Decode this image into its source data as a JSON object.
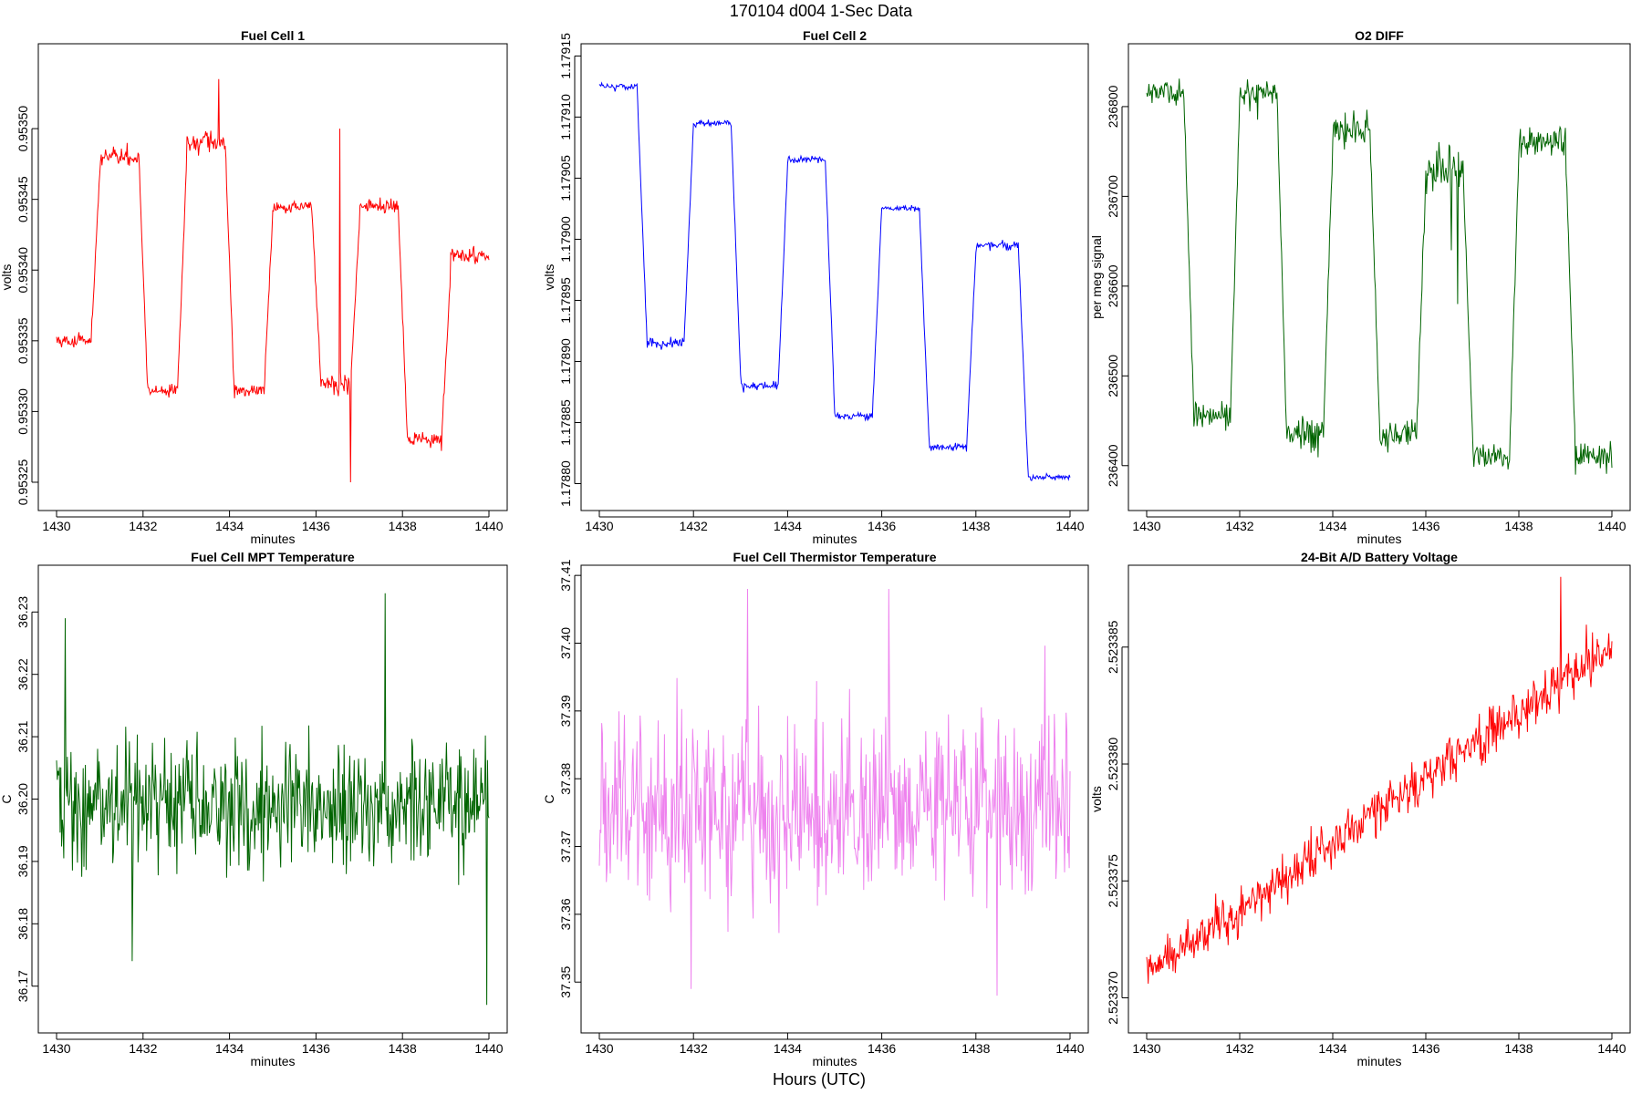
{
  "page": {
    "title": "170104   d004   1-Sec Data",
    "xlabel": "Hours (UTC)"
  },
  "chart_data": [
    {
      "id": "fuel-cell-1",
      "type": "line",
      "title": "Fuel Cell 1",
      "xlabel": "minutes",
      "ylabel": "volts",
      "color": "#ff0000",
      "xlim": [
        1430,
        1440
      ],
      "ylim": [
        0.95323,
        0.95356
      ],
      "xticks": [
        1430,
        1432,
        1434,
        1436,
        1438,
        1440
      ],
      "xtick_labels": [
        "1430",
        "1432",
        "1434",
        "1436",
        "1438",
        "1440"
      ],
      "yticks": [
        0.95325,
        0.9533,
        0.95335,
        0.9534,
        0.95345,
        0.9535
      ],
      "ytick_labels": [
        "0.95325",
        "0.95330",
        "0.95335",
        "0.95340",
        "0.95345",
        "0.95350"
      ],
      "series": [
        {
          "name": "Fuel Cell 1",
          "segments": [
            {
              "x0": 1430.0,
              "x1": 1430.8,
              "v": 0.95335,
              "noise": 3e-06
            },
            {
              "x0": 1430.8,
              "x1": 1431.0,
              "ramp": [
                0.95335,
                0.95347
              ],
              "noise": 3e-06
            },
            {
              "x0": 1431.0,
              "x1": 1431.9,
              "v": 0.95348,
              "noise": 5e-06
            },
            {
              "x0": 1431.9,
              "x1": 1432.1,
              "ramp": [
                0.95348,
                0.95332
              ],
              "noise": 3e-06
            },
            {
              "x0": 1432.1,
              "x1": 1432.8,
              "v": 0.953315,
              "noise": 4e-06
            },
            {
              "x0": 1432.8,
              "x1": 1433.0,
              "ramp": [
                0.953315,
                0.95347
              ],
              "noise": 3e-06
            },
            {
              "x0": 1433.0,
              "x1": 1433.9,
              "v": 0.95349,
              "noise": 6e-06
            },
            {
              "x0": 1433.9,
              "x1": 1434.1,
              "ramp": [
                0.95349,
                0.95332
              ],
              "noise": 3e-06
            },
            {
              "x0": 1434.1,
              "x1": 1434.8,
              "v": 0.953315,
              "noise": 4e-06
            },
            {
              "x0": 1434.8,
              "x1": 1435.0,
              "ramp": [
                0.953315,
                0.95344
              ],
              "noise": 3e-06
            },
            {
              "x0": 1435.0,
              "x1": 1435.9,
              "v": 0.953445,
              "noise": 3e-06
            },
            {
              "x0": 1435.9,
              "x1": 1436.1,
              "ramp": [
                0.953445,
                0.95333
              ],
              "noise": 3e-06
            },
            {
              "x0": 1436.1,
              "x1": 1436.8,
              "v": 0.95332,
              "noise": 6e-06
            },
            {
              "x0": 1436.8,
              "x1": 1437.0,
              "ramp": [
                0.95332,
                0.95343
              ],
              "noise": 3e-06
            },
            {
              "x0": 1437.0,
              "x1": 1437.9,
              "v": 0.953445,
              "noise": 4e-06
            },
            {
              "x0": 1437.9,
              "x1": 1438.1,
              "ramp": [
                0.953445,
                0.95329
              ],
              "noise": 3e-06
            },
            {
              "x0": 1438.1,
              "x1": 1438.9,
              "v": 0.95328,
              "noise": 4e-06
            },
            {
              "x0": 1438.9,
              "x1": 1439.1,
              "ramp": [
                0.95328,
                0.95339
              ],
              "noise": 3e-06
            },
            {
              "x0": 1439.1,
              "x1": 1440.0,
              "v": 0.95341,
              "noise": 4e-06
            }
          ],
          "spikes": [
            {
              "x": 1436.55,
              "v": 0.9535
            },
            {
              "x": 1436.8,
              "v": 0.95325
            },
            {
              "x": 1433.75,
              "v": 0.953535
            }
          ]
        }
      ]
    },
    {
      "id": "fuel-cell-2",
      "type": "line",
      "title": "Fuel Cell 2",
      "xlabel": "minutes",
      "ylabel": "volts",
      "color": "#0000ff",
      "xlim": [
        1430,
        1440
      ],
      "ylim": [
        1.178778,
        1.17916
      ],
      "xticks": [
        1430,
        1432,
        1434,
        1436,
        1438,
        1440
      ],
      "xtick_labels": [
        "1430",
        "1432",
        "1434",
        "1436",
        "1438",
        "1440"
      ],
      "yticks": [
        1.1788,
        1.17885,
        1.1789,
        1.17895,
        1.179,
        1.17905,
        1.1791,
        1.17915
      ],
      "ytick_labels": [
        "1.17880",
        "1.17885",
        "1.17890",
        "1.17895",
        "1.17900",
        "1.17905",
        "1.17910",
        "1.17915"
      ],
      "series": [
        {
          "name": "Fuel Cell 2",
          "segments": [
            {
              "x0": 1430.0,
              "x1": 1430.8,
              "v": 1.179125,
              "noise": 2e-06
            },
            {
              "x0": 1430.8,
              "x1": 1431.0,
              "ramp": [
                1.179125,
                1.17893
              ],
              "noise": 2e-06
            },
            {
              "x0": 1431.0,
              "x1": 1431.8,
              "v": 1.178915,
              "noise": 3e-06
            },
            {
              "x0": 1431.8,
              "x1": 1432.0,
              "ramp": [
                1.178915,
                1.179095
              ],
              "noise": 2e-06
            },
            {
              "x0": 1432.0,
              "x1": 1432.8,
              "v": 1.179095,
              "noise": 2e-06
            },
            {
              "x0": 1432.8,
              "x1": 1433.0,
              "ramp": [
                1.179095,
                1.17889
              ],
              "noise": 2e-06
            },
            {
              "x0": 1433.0,
              "x1": 1433.8,
              "v": 1.17888,
              "noise": 3e-06
            },
            {
              "x0": 1433.8,
              "x1": 1434.0,
              "ramp": [
                1.17888,
                1.17906
              ],
              "noise": 2e-06
            },
            {
              "x0": 1434.0,
              "x1": 1434.8,
              "v": 1.179065,
              "noise": 2e-06
            },
            {
              "x0": 1434.8,
              "x1": 1435.0,
              "ramp": [
                1.179065,
                1.17886
              ],
              "noise": 2e-06
            },
            {
              "x0": 1435.0,
              "x1": 1435.8,
              "v": 1.178855,
              "noise": 2.5e-06
            },
            {
              "x0": 1435.8,
              "x1": 1436.0,
              "ramp": [
                1.178855,
                1.179025
              ],
              "noise": 2e-06
            },
            {
              "x0": 1436.0,
              "x1": 1436.8,
              "v": 1.179025,
              "noise": 2e-06
            },
            {
              "x0": 1436.8,
              "x1": 1437.0,
              "ramp": [
                1.179025,
                1.17884
              ],
              "noise": 2e-06
            },
            {
              "x0": 1437.0,
              "x1": 1437.8,
              "v": 1.17883,
              "noise": 2.5e-06
            },
            {
              "x0": 1437.8,
              "x1": 1438.0,
              "ramp": [
                1.17883,
                1.17899
              ],
              "noise": 2e-06
            },
            {
              "x0": 1438.0,
              "x1": 1438.9,
              "v": 1.178995,
              "noise": 2.5e-06
            },
            {
              "x0": 1438.9,
              "x1": 1439.1,
              "ramp": [
                1.178995,
                1.178815
              ],
              "noise": 2e-06
            },
            {
              "x0": 1439.1,
              "x1": 1440.0,
              "v": 1.178805,
              "noise": 2e-06
            }
          ],
          "spikes": []
        }
      ]
    },
    {
      "id": "o2-diff",
      "type": "line",
      "title": "O2 DIFF",
      "xlabel": "minutes",
      "ylabel": "per meg signal",
      "color": "#006400",
      "xlim": [
        1430,
        1440
      ],
      "ylim": [
        236350,
        236870
      ],
      "xticks": [
        1430,
        1432,
        1434,
        1436,
        1438,
        1440
      ],
      "xtick_labels": [
        "1430",
        "1432",
        "1434",
        "1436",
        "1438",
        "1440"
      ],
      "yticks": [
        236400,
        236500,
        236600,
        236700,
        236800
      ],
      "ytick_labels": [
        "236400",
        "236500",
        "236600",
        "236700",
        "236800"
      ],
      "series": [
        {
          "name": "O2 DIFF",
          "segments": [
            {
              "x0": 1430.0,
              "x1": 1430.8,
              "v": 236815,
              "noise": 10
            },
            {
              "x0": 1430.8,
              "x1": 1431.0,
              "ramp": [
                236815,
                236480
              ],
              "noise": 8
            },
            {
              "x0": 1431.0,
              "x1": 1431.8,
              "v": 236455,
              "noise": 12
            },
            {
              "x0": 1431.8,
              "x1": 1432.0,
              "ramp": [
                236455,
                236810
              ],
              "noise": 8
            },
            {
              "x0": 1432.0,
              "x1": 1432.8,
              "v": 236815,
              "noise": 14
            },
            {
              "x0": 1432.8,
              "x1": 1433.0,
              "ramp": [
                236815,
                236450
              ],
              "noise": 8
            },
            {
              "x0": 1433.0,
              "x1": 1433.8,
              "v": 236435,
              "noise": 15
            },
            {
              "x0": 1433.8,
              "x1": 1434.0,
              "ramp": [
                236435,
                236760
              ],
              "noise": 8
            },
            {
              "x0": 1434.0,
              "x1": 1434.8,
              "v": 236775,
              "noise": 14
            },
            {
              "x0": 1434.8,
              "x1": 1435.0,
              "ramp": [
                236775,
                236450
              ],
              "noise": 8
            },
            {
              "x0": 1435.0,
              "x1": 1435.8,
              "v": 236435,
              "noise": 12
            },
            {
              "x0": 1435.8,
              "x1": 1436.0,
              "ramp": [
                236435,
                236720
              ],
              "noise": 8
            },
            {
              "x0": 1436.0,
              "x1": 1436.8,
              "v": 236730,
              "noise": 20
            },
            {
              "x0": 1436.8,
              "x1": 1437.0,
              "ramp": [
                236730,
                236440
              ],
              "noise": 8
            },
            {
              "x0": 1437.0,
              "x1": 1437.8,
              "v": 236410,
              "noise": 12
            },
            {
              "x0": 1437.8,
              "x1": 1438.0,
              "ramp": [
                236410,
                236750
              ],
              "noise": 8
            },
            {
              "x0": 1438.0,
              "x1": 1439.0,
              "v": 236760,
              "noise": 14
            },
            {
              "x0": 1439.0,
              "x1": 1439.2,
              "ramp": [
                236760,
                236440
              ],
              "noise": 8
            },
            {
              "x0": 1439.2,
              "x1": 1440.0,
              "v": 236410,
              "noise": 12
            }
          ],
          "spikes": [
            {
              "x": 1436.55,
              "v": 236640
            },
            {
              "x": 1436.68,
              "v": 236580
            }
          ]
        }
      ]
    },
    {
      "id": "fuel-cell-mpt-temperature",
      "type": "line",
      "title": "Fuel Cell MPT Temperature",
      "xlabel": "minutes",
      "ylabel": "C",
      "color": "#006400",
      "xlim": [
        1430,
        1440
      ],
      "ylim": [
        36.1625,
        36.2375
      ],
      "xticks": [
        1430,
        1432,
        1434,
        1436,
        1438,
        1440
      ],
      "xtick_labels": [
        "1430",
        "1432",
        "1434",
        "1436",
        "1438",
        "1440"
      ],
      "yticks": [
        36.17,
        36.18,
        36.19,
        36.2,
        36.21,
        36.22,
        36.23
      ],
      "ytick_labels": [
        "36.17",
        "36.18",
        "36.19",
        "36.20",
        "36.21",
        "36.22",
        "36.23"
      ],
      "series": [
        {
          "name": "Fuel Cell MPT Temperature",
          "segments": [
            {
              "x0": 1430.0,
              "x1": 1440.0,
              "v": 36.199,
              "noise": 0.0075
            }
          ],
          "spikes": [
            {
              "x": 1430.2,
              "v": 36.229
            },
            {
              "x": 1437.6,
              "v": 36.233
            },
            {
              "x": 1439.95,
              "v": 36.167
            },
            {
              "x": 1431.75,
              "v": 36.174
            }
          ]
        }
      ]
    },
    {
      "id": "fuel-cell-thermistor-temperature",
      "type": "line",
      "title": "Fuel Cell Thermistor Temperature",
      "xlabel": "minutes",
      "ylabel": "C",
      "color": "#ee82ee",
      "xlim": [
        1430,
        1440
      ],
      "ylim": [
        37.3425,
        37.4115
      ],
      "xticks": [
        1430,
        1432,
        1434,
        1436,
        1438,
        1440
      ],
      "xtick_labels": [
        "1430",
        "1432",
        "1434",
        "1436",
        "1438",
        "1440"
      ],
      "yticks": [
        37.35,
        37.36,
        37.37,
        37.38,
        37.39,
        37.4,
        37.41
      ],
      "ytick_labels": [
        "37.35",
        "37.36",
        "37.37",
        "37.38",
        "37.39",
        "37.40",
        "37.41"
      ],
      "series": [
        {
          "name": "Fuel Cell Thermistor Temperature",
          "segments": [
            {
              "x0": 1430.0,
              "x1": 1440.0,
              "v": 37.376,
              "noise": 0.0105
            }
          ],
          "spikes": [
            {
              "x": 1431.95,
              "v": 37.349
            },
            {
              "x": 1433.15,
              "v": 37.408
            },
            {
              "x": 1436.15,
              "v": 37.408
            },
            {
              "x": 1438.45,
              "v": 37.348
            }
          ]
        }
      ]
    },
    {
      "id": "24-bit-ad-battery-voltage",
      "type": "line",
      "title": "24-Bit A/D Battery Voltage",
      "xlabel": "minutes",
      "ylabel": "volts",
      "color": "#ff0000",
      "xlim": [
        1430,
        1440
      ],
      "ylim": [
        2.5233685,
        2.5233885
      ],
      "xticks": [
        1430,
        1432,
        1434,
        1436,
        1438,
        1440
      ],
      "xtick_labels": [
        "1430",
        "1432",
        "1434",
        "1436",
        "1438",
        "1440"
      ],
      "yticks": [
        2.52337,
        2.523375,
        2.52338,
        2.523385
      ],
      "ytick_labels": [
        "2.523370",
        "2.523375",
        "2.523380",
        "2.523385"
      ],
      "series": [
        {
          "name": "24-Bit A/D Battery Voltage",
          "segments": [
            {
              "x0": 1430.0,
              "x1": 1440.0,
              "ramp": [
                2.523371,
                2.523385
              ],
              "noise": 7.5e-07
            }
          ],
          "spikes": [
            {
              "x": 1438.9,
              "v": 2.523388
            }
          ]
        }
      ]
    }
  ]
}
